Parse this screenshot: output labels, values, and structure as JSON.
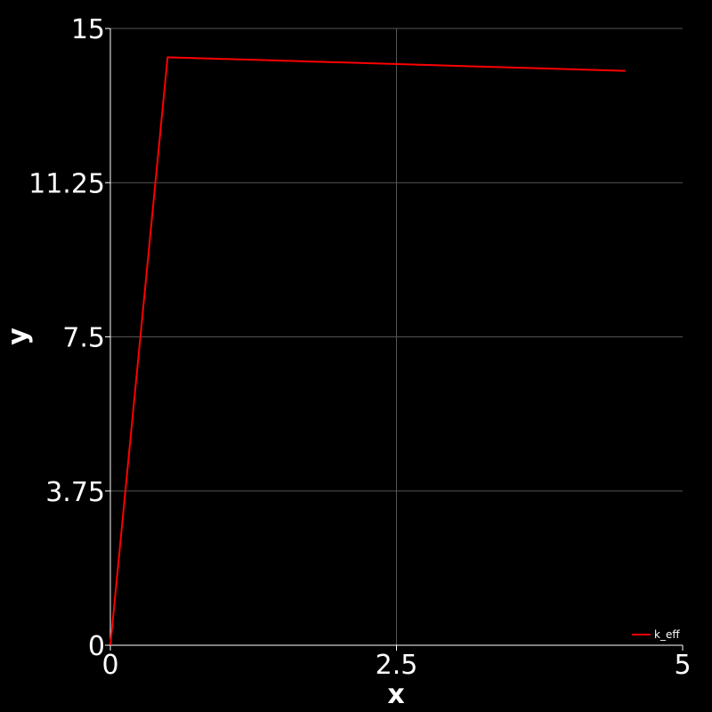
{
  "chart_data": {
    "type": "line",
    "xlabel": "x",
    "ylabel": "y",
    "xlim": [
      0,
      5
    ],
    "ylim": [
      0,
      15
    ],
    "x_ticks": [
      0,
      2.5,
      5
    ],
    "x_tick_labels": [
      "0",
      "2.5",
      "5"
    ],
    "y_ticks": [
      0,
      3.75,
      7.5,
      11.25,
      15
    ],
    "y_tick_labels": [
      "0",
      "3.75",
      "7.5",
      "11.25",
      "15"
    ],
    "grid": true,
    "legend_placement": "bottom-right",
    "background_color": "#000000",
    "foreground_color": "#ffffff",
    "grid_color": "#555555",
    "series": [
      {
        "name": "k_eff",
        "color": "#ff0000",
        "x": [
          0,
          0.5,
          4.5
        ],
        "y": [
          0,
          14.3,
          13.97
        ]
      }
    ]
  }
}
